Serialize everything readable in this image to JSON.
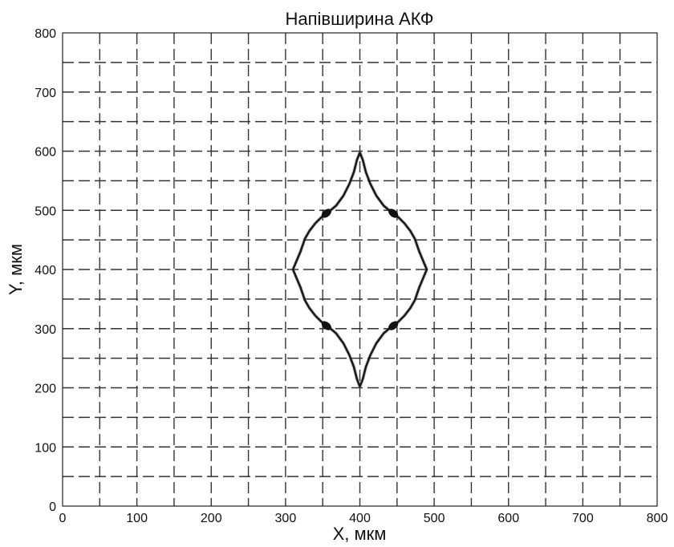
{
  "chart_data": {
    "type": "line",
    "title": "Напівширина АКФ",
    "xlabel": "X, мкм",
    "ylabel": "Y, мкм",
    "xlim": [
      0,
      800
    ],
    "ylim": [
      0,
      800
    ],
    "xticks": [
      0,
      100,
      200,
      300,
      400,
      500,
      600,
      700,
      800
    ],
    "yticks": [
      0,
      100,
      200,
      300,
      400,
      500,
      600,
      700,
      800
    ],
    "grid_step": 50,
    "grid": true,
    "series": [
      {
        "color": "#1a1a1a",
        "x": [
          400,
          404,
          408,
          414,
          422,
          432,
          444,
          452,
          460,
          468,
          474,
          480,
          490,
          480,
          474,
          468,
          460,
          452,
          444,
          432,
          422,
          414,
          408,
          404,
          400,
          396,
          392,
          386,
          378,
          368,
          356,
          348,
          340,
          332,
          326,
          320,
          310,
          320,
          326,
          332,
          340,
          348,
          356,
          368,
          378,
          386,
          392,
          396,
          400
        ],
        "y": [
          598,
          585,
          565,
          545,
          525,
          508,
          495,
          488,
          478,
          465,
          452,
          430,
          400,
          370,
          348,
          335,
          322,
          312,
          305,
          292,
          275,
          255,
          235,
          215,
          202,
          215,
          235,
          255,
          275,
          292,
          305,
          312,
          322,
          335,
          348,
          370,
          400,
          430,
          452,
          465,
          478,
          488,
          495,
          508,
          525,
          545,
          565,
          585,
          598
        ]
      }
    ],
    "markers": [
      {
        "x": 355,
        "y": 495
      },
      {
        "x": 445,
        "y": 495
      },
      {
        "x": 355,
        "y": 305
      },
      {
        "x": 445,
        "y": 305
      }
    ]
  }
}
